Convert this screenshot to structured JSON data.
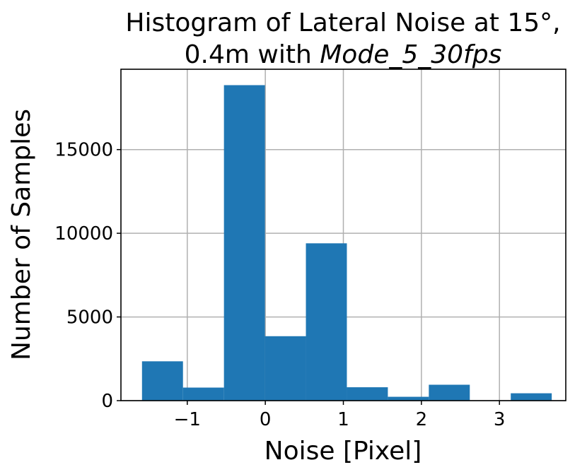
{
  "chart_data": {
    "type": "bar",
    "title_line1": "Histogram of Lateral Noise at 15°,",
    "title_line2_prefix": "0.4m with ",
    "title_line2_italic": "Mode_5_30fps",
    "xlabel": "Noise [Pixel]",
    "ylabel": "Number of Samples",
    "xlim": [
      -1.85,
      3.85
    ],
    "ylim": [
      0,
      19800
    ],
    "grid": true,
    "bar_color": "#1f77b4",
    "bin_edges": [
      -1.58,
      -1.055,
      -0.53,
      -0.005,
      0.52,
      1.045,
      1.57,
      2.095,
      2.62,
      3.145,
      3.67
    ],
    "values": [
      2350,
      780,
      18850,
      3850,
      9400,
      800,
      230,
      950,
      0,
      440
    ],
    "xticks": [
      -1,
      0,
      1,
      2,
      3
    ],
    "xtick_labels": [
      "−1",
      "0",
      "1",
      "2",
      "3"
    ],
    "yticks": [
      0,
      5000,
      10000,
      15000
    ],
    "ytick_labels": [
      "0",
      "5000",
      "10000",
      "15000"
    ]
  }
}
